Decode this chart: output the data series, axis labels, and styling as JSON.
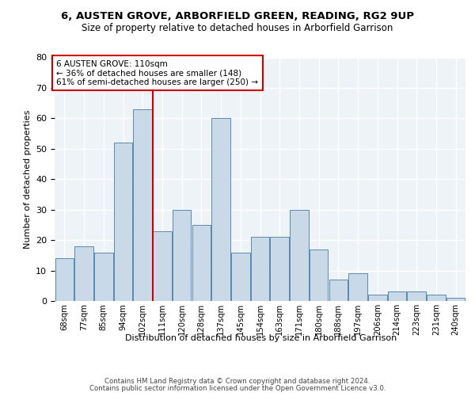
{
  "title1": "6, AUSTEN GROVE, ARBORFIELD GREEN, READING, RG2 9UP",
  "title2": "Size of property relative to detached houses in Arborfield Garrison",
  "xlabel": "Distribution of detached houses by size in Arborfield Garrison",
  "ylabel": "Number of detached properties",
  "bar_labels": [
    "68sqm",
    "77sqm",
    "85sqm",
    "94sqm",
    "102sqm",
    "111sqm",
    "120sqm",
    "128sqm",
    "137sqm",
    "145sqm",
    "154sqm",
    "163sqm",
    "171sqm",
    "180sqm",
    "188sqm",
    "197sqm",
    "206sqm",
    "214sqm",
    "223sqm",
    "231sqm",
    "240sqm"
  ],
  "bar_values": [
    14,
    18,
    16,
    52,
    63,
    23,
    30,
    25,
    60,
    16,
    21,
    21,
    30,
    17,
    7,
    9,
    2,
    3,
    3,
    2,
    1
  ],
  "bar_color": "#c9d9e8",
  "bar_edge_color": "#5a8ab0",
  "bg_color": "#eef3f8",
  "grid_color": "#ffffff",
  "annotation_text": "6 AUSTEN GROVE: 110sqm\n← 36% of detached houses are smaller (148)\n61% of semi-detached houses are larger (250) →",
  "annotation_box_color": "#ffffff",
  "annotation_border_color": "#cc0000",
  "red_line_color": "#cc0000",
  "ylim": [
    0,
    80
  ],
  "yticks": [
    0,
    10,
    20,
    30,
    40,
    50,
    60,
    70,
    80
  ],
  "footer1": "Contains HM Land Registry data © Crown copyright and database right 2024.",
  "footer2": "Contains public sector information licensed under the Open Government Licence v3.0."
}
